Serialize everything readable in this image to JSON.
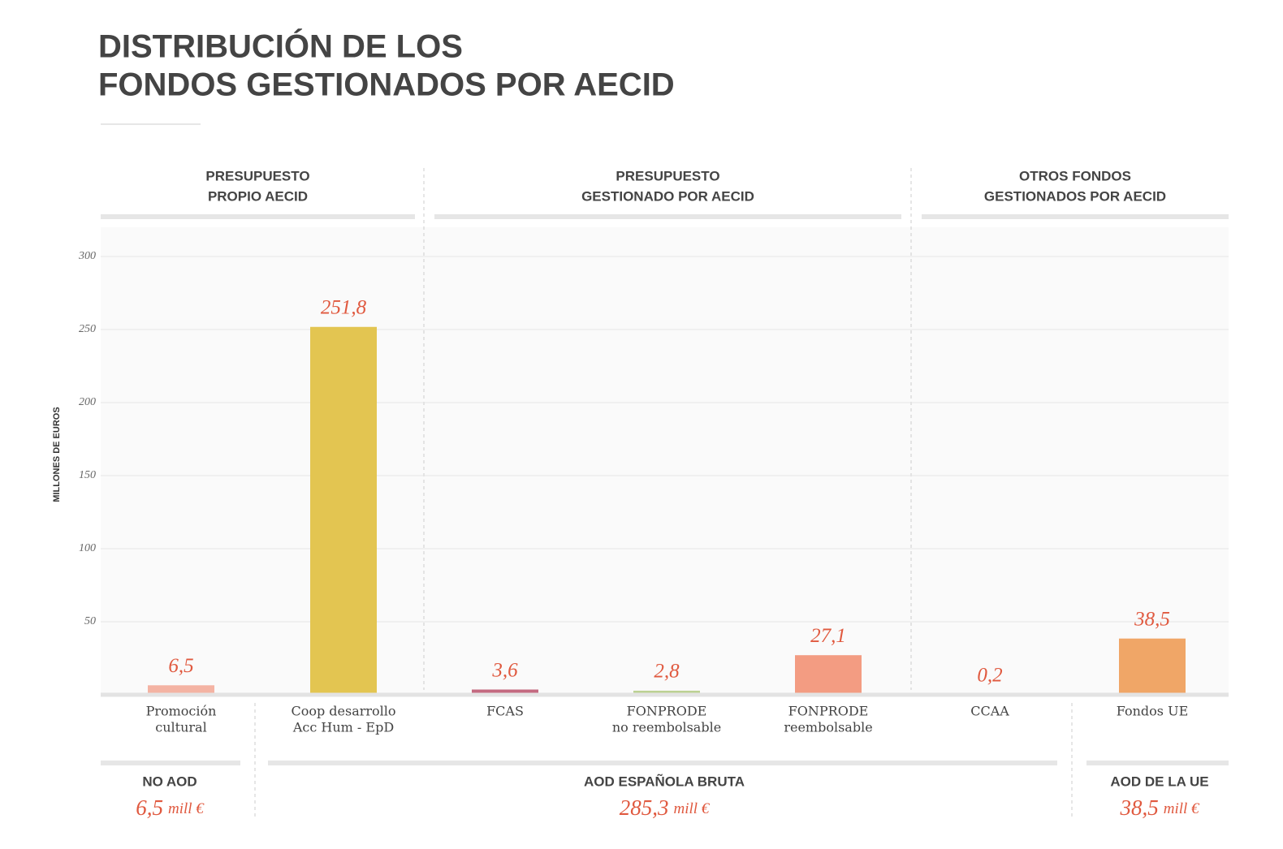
{
  "chart_data": {
    "type": "bar",
    "title": [
      "DISTRIBUCIÓN DE LOS",
      "FONDOS GESTIONADOS POR AECID"
    ],
    "y_label": "MILLONES DE EUROS",
    "categories": [
      [
        "Promoción",
        "cultural"
      ],
      [
        "Coop desarrollo",
        "Acc Hum - EpD"
      ],
      [
        "FCAS"
      ],
      [
        "FONPRODE",
        "no reembolsable"
      ],
      [
        "FONPRODE",
        "reembolsable"
      ],
      [
        "CCAA"
      ],
      [
        "Fondos UE"
      ]
    ],
    "values": [
      6.5,
      251.8,
      3.6,
      2.8,
      27.1,
      0.2,
      38.5
    ],
    "value_labels": [
      "6,5",
      "251,8",
      "3,6",
      "2,8",
      "27,1",
      "0,2",
      "38,5"
    ],
    "colors": [
      "#f4b3a3",
      "#e3c551",
      "#c46a80",
      "#bcd193",
      "#f39c82",
      "#72c6cc",
      "#f0a667"
    ],
    "ylim": [
      0,
      320
    ],
    "yticks": [
      50,
      100,
      150,
      200,
      250,
      300
    ],
    "grid": true,
    "top_groups": [
      [
        "PRESUPUESTO",
        "PROPIO AECID"
      ],
      [
        "PRESUPUESTO",
        "GESTIONADO POR AECID"
      ],
      [
        "OTROS FONDOS",
        "GESTIONADOS POR AECID"
      ]
    ],
    "bottom_groups": [
      {
        "label": "NO AOD",
        "total": "6,5",
        "unit": "mill €"
      },
      {
        "label": "AOD ESPAÑOLA BRUTA",
        "total": "285,3",
        "unit": "mill €"
      },
      {
        "label": "AOD DE LA UE",
        "total": "38,5",
        "unit": "mill €"
      }
    ]
  }
}
